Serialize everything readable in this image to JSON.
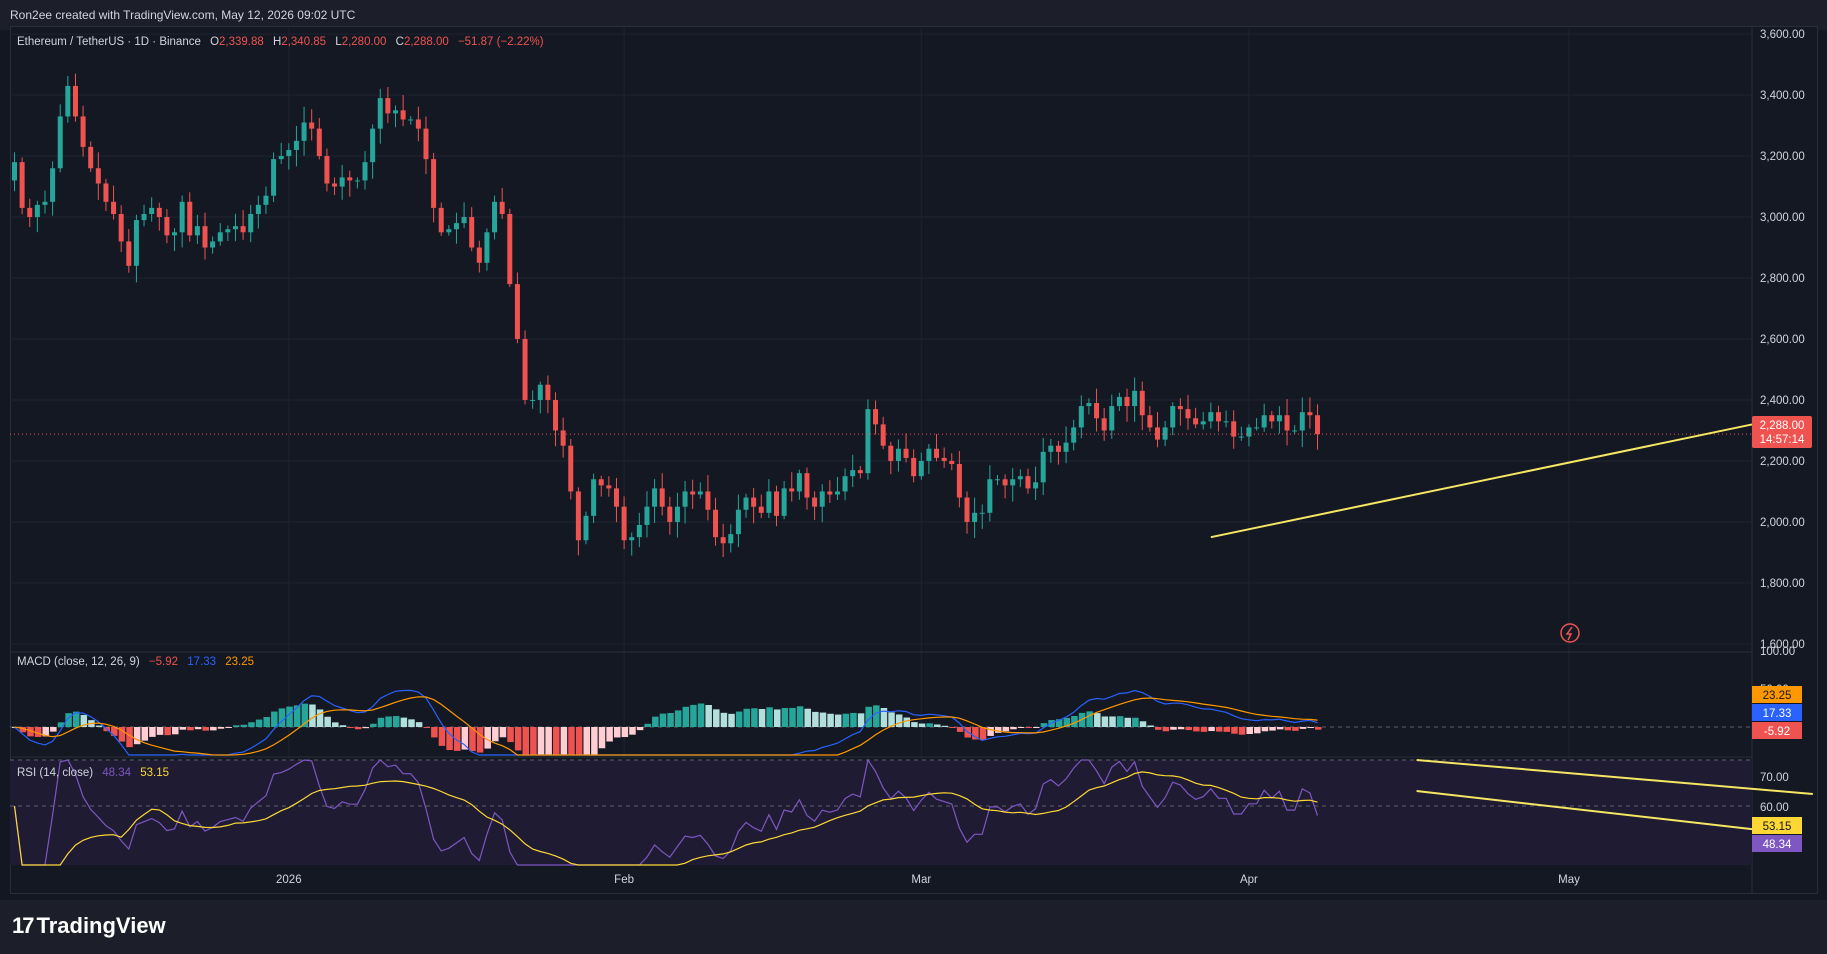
{
  "header": {
    "attribution": "Ron2ee created with TradingView.com, May 12, 2026 09:02 UTC"
  },
  "legend": {
    "symbol": "Ethereum / TetherUS · 1D · Binance",
    "o_label": "O",
    "o": "2,339.88",
    "h_label": "H",
    "h": "2,340.85",
    "l_label": "L",
    "l": "2,280.00",
    "c_label": "C",
    "c": "2,288.00",
    "change": "−51.87 (−2.22%)"
  },
  "colors": {
    "bull": "#26a69a",
    "bear": "#ef5350",
    "trend": "#f5e663",
    "macd": "#2962ff",
    "signal": "#ff9800",
    "rsi": "#7e57c2",
    "rsi_ma": "#fdd835"
  },
  "price_badge": {
    "price": "2,288.00",
    "countdown": "14:57:14"
  },
  "macd": {
    "label": "MACD (close, 12, 26, 9)",
    "hist": "−5.92",
    "macd": "17.33",
    "signal": "23.25",
    "badge_signal": "23.25",
    "badge_macd": "17.33",
    "badge_hist": "-5.92",
    "axis_top": "100.00",
    "axis_50": "50.00"
  },
  "rsi": {
    "label": "RSI (14, close)",
    "value": "48.34",
    "ma": "53.15",
    "badge_ma": "53.15",
    "badge_value": "48.34",
    "axis_70": "70.00",
    "axis_60": "60.00"
  },
  "footer": {
    "brand": "TradingView"
  },
  "chart_data": {
    "type": "candlestick",
    "title": "Ethereum / TetherUS · 1D · Binance",
    "y_ticks": [
      "3,600.00",
      "3,400.00",
      "3,200.00",
      "3,000.00",
      "2,800.00",
      "2,600.00",
      "2,400.00",
      "2,200.00",
      "2,000.00",
      "1,800.00",
      "1,600.00"
    ],
    "ylim": [
      1580,
      3620
    ],
    "x_labels": [
      {
        "label": "2026",
        "index": 36
      },
      {
        "label": "Feb",
        "index": 80
      },
      {
        "label": "Mar",
        "index": 119
      },
      {
        "label": "Apr",
        "index": 162
      },
      {
        "label": "May",
        "index": 204
      }
    ],
    "closes": [
      3180,
      3030,
      3000,
      3040,
      3050,
      3160,
      3330,
      3430,
      3330,
      3230,
      3160,
      3110,
      3050,
      3010,
      2920,
      2840,
      2990,
      3010,
      3030,
      3000,
      2940,
      2950,
      3050,
      2940,
      2970,
      2900,
      2920,
      2950,
      2960,
      2970,
      2950,
      3010,
      3040,
      3070,
      3190,
      3200,
      3220,
      3250,
      3310,
      3290,
      3200,
      3110,
      3100,
      3130,
      3120,
      3120,
      3180,
      3290,
      3390,
      3340,
      3350,
      3320,
      3320,
      3290,
      3190,
      3030,
      2950,
      2960,
      2980,
      3000,
      2900,
      2850,
      2950,
      3050,
      3010,
      2780,
      2600,
      2400,
      2400,
      2450,
      2400,
      2300,
      2250,
      2100,
      1940,
      2020,
      2140,
      2120,
      2110,
      2050,
      1940,
      1950,
      1990,
      2050,
      2110,
      2050,
      2000,
      2050,
      2100,
      2090,
      2100,
      2040,
      1950,
      1930,
      1960,
      2040,
      2080,
      2050,
      2030,
      2100,
      2020,
      2110,
      2100,
      2160,
      2080,
      2050,
      2100,
      2090,
      2100,
      2150,
      2170,
      2160,
      2370,
      2320,
      2250,
      2200,
      2240,
      2210,
      2150,
      2200,
      2240,
      2210,
      2200,
      2190,
      2080,
      2000,
      2030,
      2030,
      2140,
      2140,
      2120,
      2140,
      2150,
      2110,
      2130,
      2230,
      2250,
      2230,
      2260,
      2310,
      2380,
      2390,
      2340,
      2300,
      2380,
      2410,
      2380,
      2430,
      2350,
      2310,
      2270,
      2310,
      2380,
      2370,
      2340,
      2320,
      2330,
      2360,
      2330,
      2330,
      2280,
      2280,
      2310,
      2310,
      2350,
      2330,
      2350,
      2300,
      2300,
      2360,
      2350,
      2288
    ],
    "open_first": 3120,
    "trendline_price": {
      "from": [
        157,
        1950
      ],
      "to": [
        230,
        2330
      ]
    },
    "rsi_channel": {
      "upper": {
        "from": [
          184,
          68
        ],
        "to": [
          236,
          54
        ]
      },
      "lower": {
        "from": [
          184,
          55
        ],
        "to": [
          229,
          42
        ]
      }
    }
  }
}
